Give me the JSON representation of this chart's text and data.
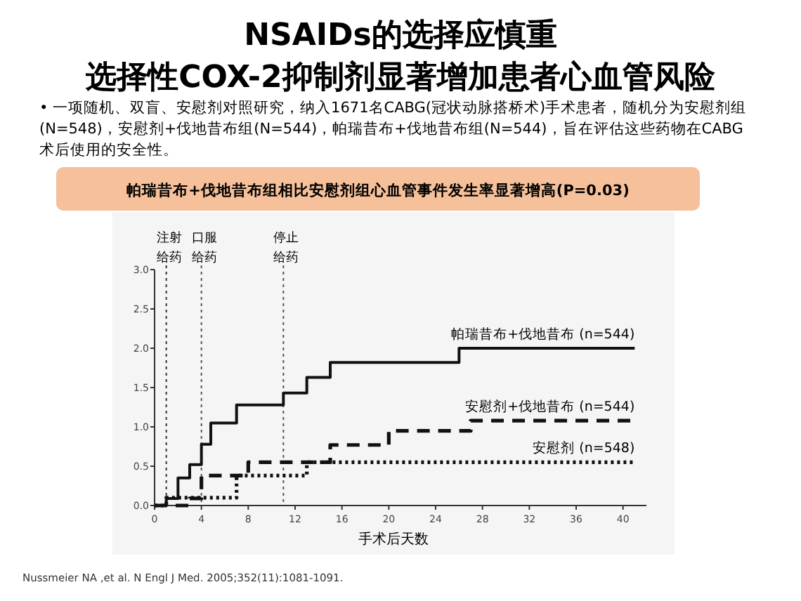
{
  "chart_data": {
    "type": "step",
    "title": "NSAIDs的选择应慎重",
    "subtitle": "选择性COX-2抑制剂显著增加患者心血管风险",
    "annotations": [
      "• 一项随机、双盲、安慰剂对照研究，纳入1671名CABG(冠状动脉搭桥术)手术患者，随机分为安慰剂组(N=548)，安慰剂+伐地昔布组(N=544)，帕瑞昔布+伐地昔布组(N=544)，旨在评估这些药物在CABG术后使用的安全性。",
      "帕瑞昔布+伐地昔布组相比安慰剂组心血管事件发生率显著增高(P=0.03)",
      "Nussmeier NA ,et al. N Engl J Med. 2005;352(11):1081-1091."
    ],
    "xlabel": "手术后天数",
    "xlim": [
      0,
      42
    ],
    "xticks": [
      0,
      4,
      8,
      12,
      16,
      20,
      24,
      28,
      32,
      36,
      40
    ],
    "ylim": [
      0,
      3
    ],
    "yticks": [
      {
        "value": 0,
        "label": "0.0"
      },
      {
        "value": 0.5,
        "label": "0.5"
      },
      {
        "value": 1,
        "label": "1.0"
      },
      {
        "value": 1.5,
        "label": "1.5"
      },
      {
        "value": 2,
        "label": "2.0"
      },
      {
        "value": 2.5,
        "label": "2.5"
      },
      {
        "value": 3,
        "label": "3.0"
      }
    ],
    "ref_lines": [
      {
        "axis": "x",
        "value": 1,
        "label": "注射给药",
        "color": "#333333",
        "line_style": "dotted"
      },
      {
        "axis": "x",
        "value": 4,
        "label": "口服给药",
        "color": "#555555",
        "line_style": "dotted"
      },
      {
        "axis": "x",
        "value": 11,
        "label": "停止给药",
        "color": "#555555",
        "line_style": "dotted"
      }
    ],
    "series": [
      {
        "name": "帕瑞昔布+伐地昔布 (n=544)",
        "color": "#111111",
        "line_style": "solid",
        "x": [
          0,
          1,
          2,
          3,
          4,
          4.8,
          7,
          11,
          13,
          15,
          26,
          41
        ],
        "values": [
          0,
          0.09,
          0.35,
          0.52,
          0.78,
          1.05,
          1.28,
          1.43,
          1.63,
          1.82,
          2.0,
          2.0
        ]
      },
      {
        "name": "安慰剂+伐地昔布 (n=544)",
        "color": "#111111",
        "line_style": "dashed",
        "x": [
          0,
          3,
          4,
          8,
          15,
          20,
          27,
          41
        ],
        "values": [
          0,
          0.09,
          0.38,
          0.55,
          0.77,
          0.95,
          1.08,
          1.08
        ]
      },
      {
        "name": "安慰剂 (n=548)",
        "color": "#111111",
        "line_style": "dotted",
        "x": [
          0,
          1,
          7,
          13,
          41
        ],
        "values": [
          0,
          0.1,
          0.38,
          0.55,
          0.55
        ]
      }
    ]
  }
}
